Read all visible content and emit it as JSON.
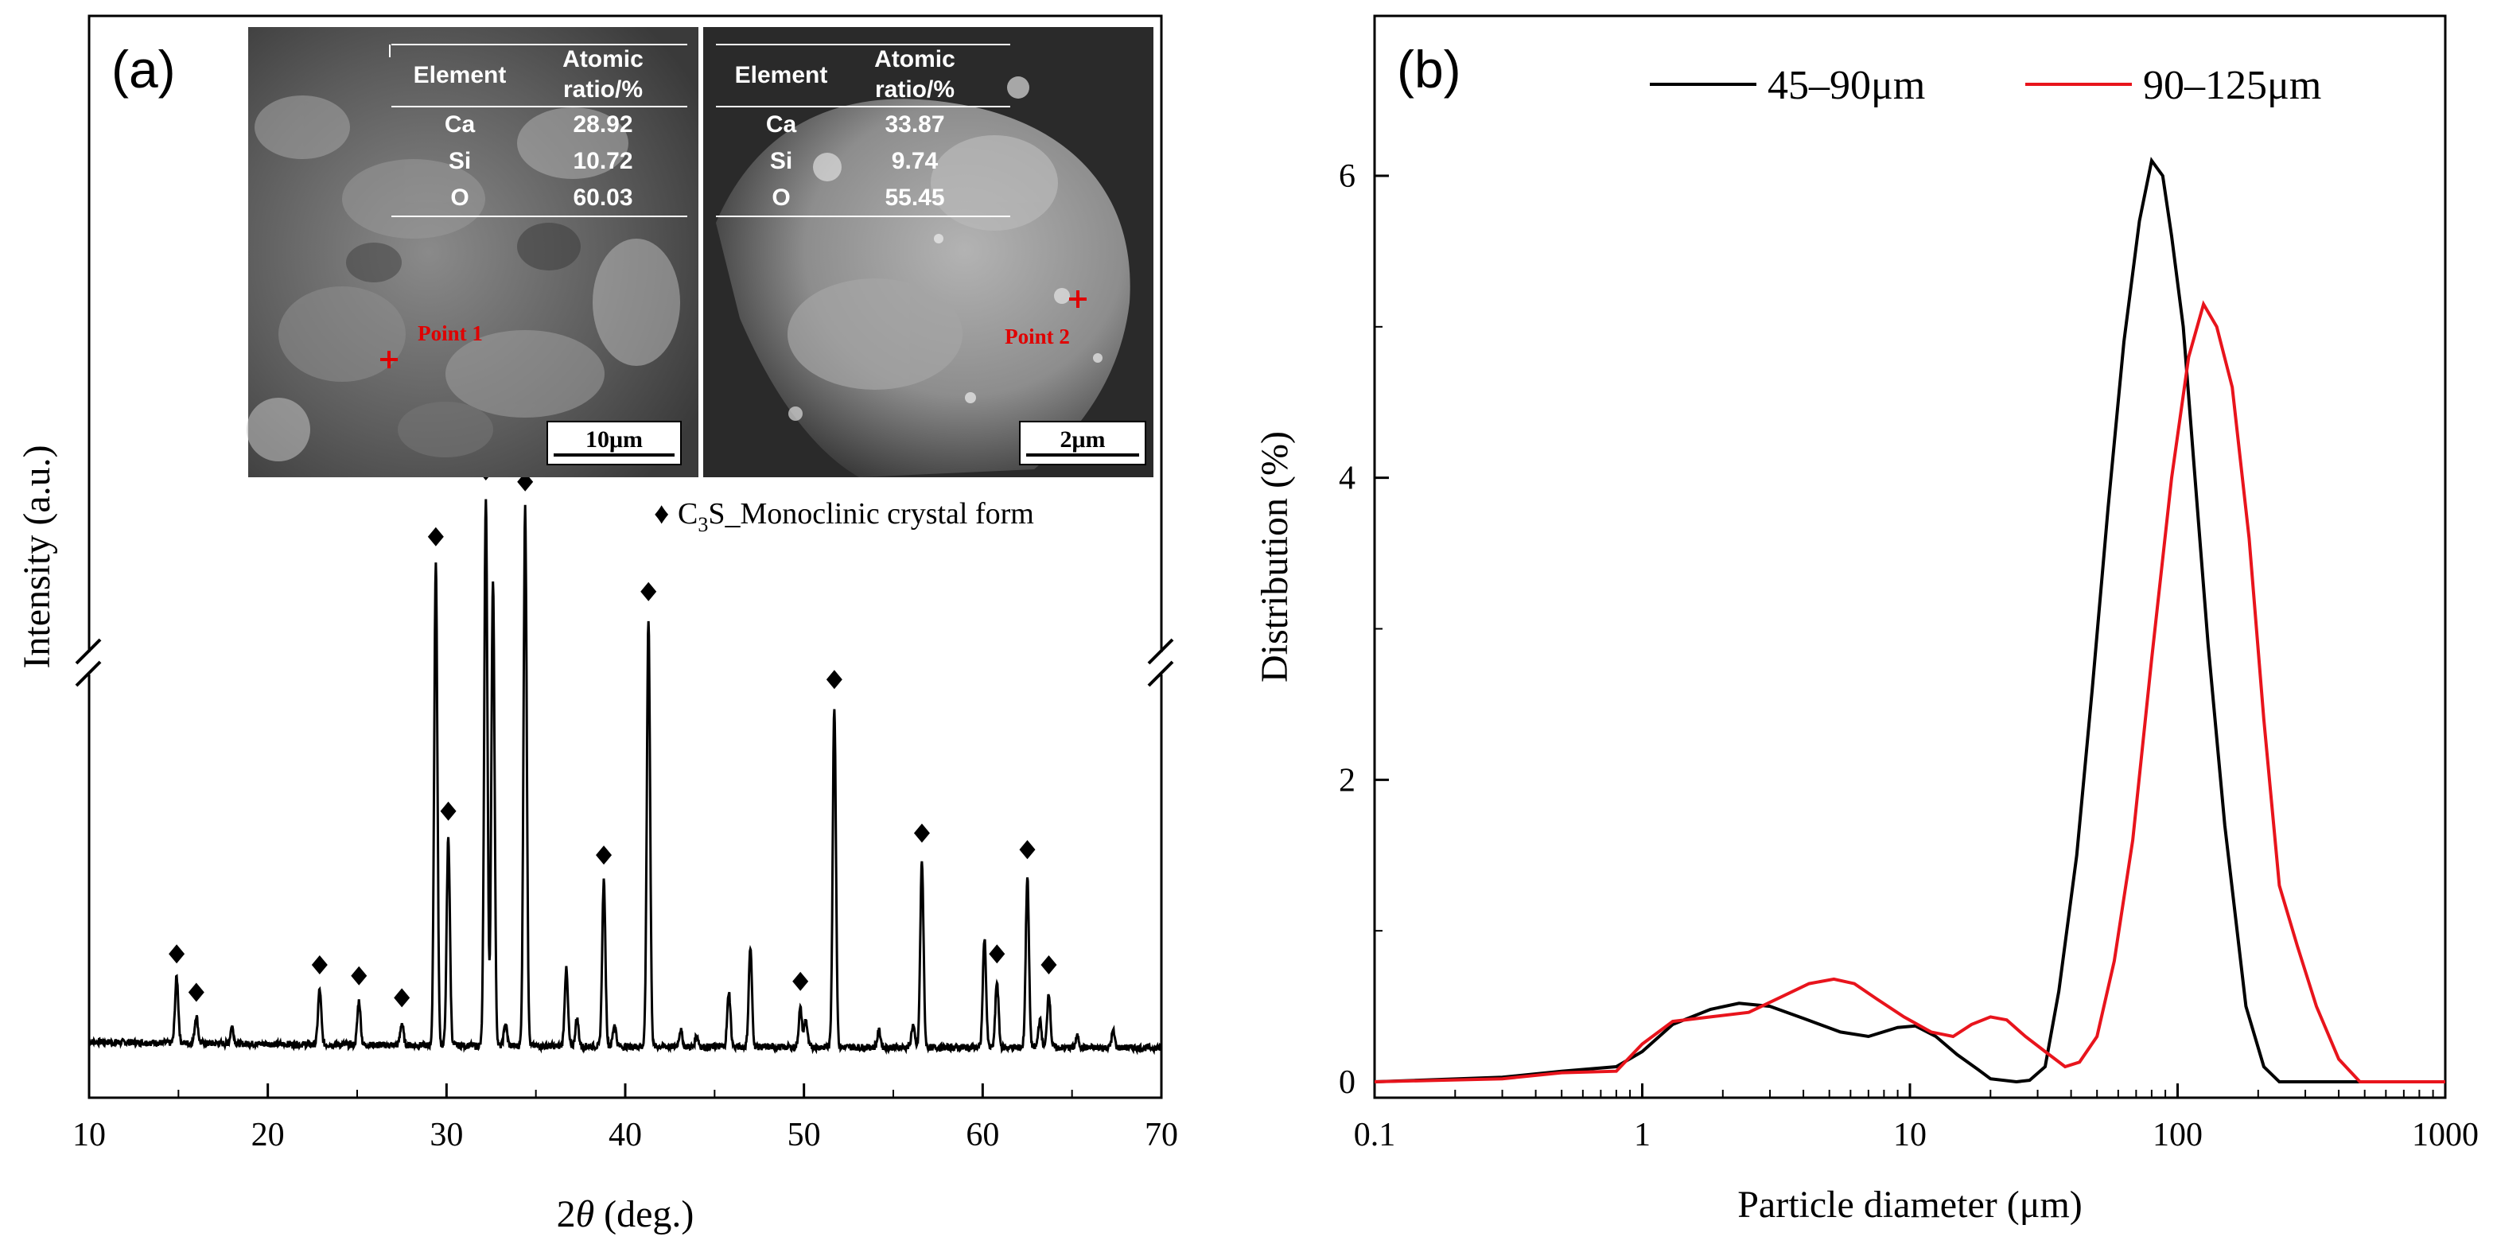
{
  "panel_a": {
    "label": "(a)",
    "legend_marker": "♦",
    "legend_text_pre": "C",
    "legend_text_sub": "3",
    "legend_text_post": "S_Monoclinic crystal form",
    "inset1": {
      "headers": [
        "Element",
        "Atomic",
        "ratio/%"
      ],
      "rows": [
        [
          "Ca",
          "28.92"
        ],
        [
          "Si",
          "10.72"
        ],
        [
          "O",
          "60.03"
        ]
      ],
      "point_label": "Point 1",
      "scale_label": "10μm"
    },
    "inset2": {
      "headers": [
        "Element",
        "Atomic",
        "ratio/%"
      ],
      "rows": [
        [
          "Ca",
          "33.87"
        ],
        [
          "Si",
          "9.74"
        ],
        [
          "O",
          "55.45"
        ]
      ],
      "point_label": "Point 2",
      "scale_label": "2μm"
    }
  },
  "panel_b": {
    "label": "(b)"
  },
  "colors": {
    "series_45_90": "#000000",
    "series_90_125": "#e8141c"
  },
  "chart_data": [
    {
      "type": "line",
      "xlabel_pre": "2",
      "xlabel_theta": "θ",
      "xlabel_post": " (deg.)",
      "ylabel": "Intensity (a.u.)",
      "xlim": [
        10,
        70
      ],
      "xticks": [
        "10",
        "20",
        "30",
        "40",
        "50",
        "60",
        "70"
      ],
      "y_axis_break": true,
      "peaks_2theta": [
        14.9,
        16.0,
        22.9,
        25.1,
        27.5,
        29.4,
        30.1,
        32.2,
        34.4,
        38.8,
        41.3,
        49.8,
        51.7,
        56.6,
        60.8,
        62.5,
        63.7
      ],
      "peak_heights_rel": [
        0.12,
        0.05,
        0.1,
        0.08,
        0.04,
        0.88,
        0.38,
        1.0,
        0.98,
        0.3,
        0.78,
        0.07,
        0.62,
        0.34,
        0.12,
        0.31,
        0.1
      ],
      "marked_peaks": [
        14.9,
        16.0,
        22.9,
        25.1,
        27.5,
        29.4,
        30.1,
        32.2,
        34.4,
        38.8,
        41.3,
        49.8,
        51.7,
        56.6,
        60.8,
        62.5,
        63.7
      ],
      "minor_peaks": [
        [
          18.0,
          0.03
        ],
        [
          32.6,
          0.85
        ],
        [
          33.3,
          0.04
        ],
        [
          36.7,
          0.14
        ],
        [
          37.3,
          0.05
        ],
        [
          39.4,
          0.04
        ],
        [
          43.1,
          0.03
        ],
        [
          44.0,
          0.02
        ],
        [
          45.8,
          0.1
        ],
        [
          47.0,
          0.18
        ],
        [
          50.1,
          0.05
        ],
        [
          54.2,
          0.03
        ],
        [
          56.1,
          0.04
        ],
        [
          60.1,
          0.2
        ],
        [
          63.2,
          0.05
        ],
        [
          65.3,
          0.02
        ],
        [
          67.3,
          0.03
        ]
      ]
    },
    {
      "type": "line",
      "xlabel": "Particle diameter (μm)",
      "ylabel": "Distribution (%)",
      "xscale": "log",
      "xlim": [
        0.1,
        1000
      ],
      "ylim": [
        0,
        7
      ],
      "xticks": [
        "0.1",
        "1",
        "10",
        "100",
        "1000"
      ],
      "yticks": [
        "0",
        "2",
        "4",
        "6"
      ],
      "legend_position": "top-right",
      "series": [
        {
          "name": "45–90μm",
          "x": [
            0.1,
            0.3,
            0.5,
            0.8,
            1.0,
            1.3,
            1.8,
            2.3,
            3.0,
            4.0,
            5.5,
            7.0,
            9.0,
            10.5,
            12.5,
            15.0,
            18.0,
            20.0,
            25.0,
            28.0,
            32.0,
            36.0,
            42.0,
            48.0,
            55.0,
            63.0,
            72.0,
            80.0,
            88.0,
            95.0,
            105.0,
            115.0,
            130.0,
            150.0,
            180.0,
            210.0,
            240.0,
            1000.0
          ],
          "y": [
            0.0,
            0.03,
            0.07,
            0.1,
            0.2,
            0.38,
            0.48,
            0.52,
            0.5,
            0.42,
            0.33,
            0.3,
            0.36,
            0.37,
            0.3,
            0.18,
            0.08,
            0.02,
            0.0,
            0.01,
            0.1,
            0.6,
            1.5,
            2.6,
            3.8,
            4.9,
            5.7,
            6.1,
            6.0,
            5.6,
            5.0,
            4.1,
            2.9,
            1.7,
            0.5,
            0.1,
            0.0,
            0.0
          ]
        },
        {
          "name": "90–125μm",
          "x": [
            0.1,
            0.3,
            0.5,
            0.8,
            1.0,
            1.3,
            1.8,
            2.5,
            3.2,
            4.2,
            5.2,
            6.2,
            7.5,
            9.5,
            12.0,
            14.5,
            17.0,
            20.0,
            23.0,
            27.0,
            32.0,
            38.0,
            43.0,
            50.0,
            58.0,
            68.0,
            80.0,
            95.0,
            110.0,
            125.0,
            140.0,
            160.0,
            185.0,
            210.0,
            240.0,
            280.0,
            330.0,
            400.0,
            480.0,
            1000.0
          ],
          "y": [
            0.0,
            0.02,
            0.06,
            0.07,
            0.25,
            0.4,
            0.43,
            0.46,
            0.55,
            0.65,
            0.68,
            0.65,
            0.55,
            0.43,
            0.33,
            0.3,
            0.38,
            0.43,
            0.41,
            0.3,
            0.2,
            0.1,
            0.13,
            0.3,
            0.8,
            1.6,
            2.8,
            4.0,
            4.8,
            5.15,
            5.0,
            4.6,
            3.6,
            2.4,
            1.3,
            0.9,
            0.5,
            0.15,
            0.0,
            0.0
          ]
        }
      ]
    }
  ]
}
